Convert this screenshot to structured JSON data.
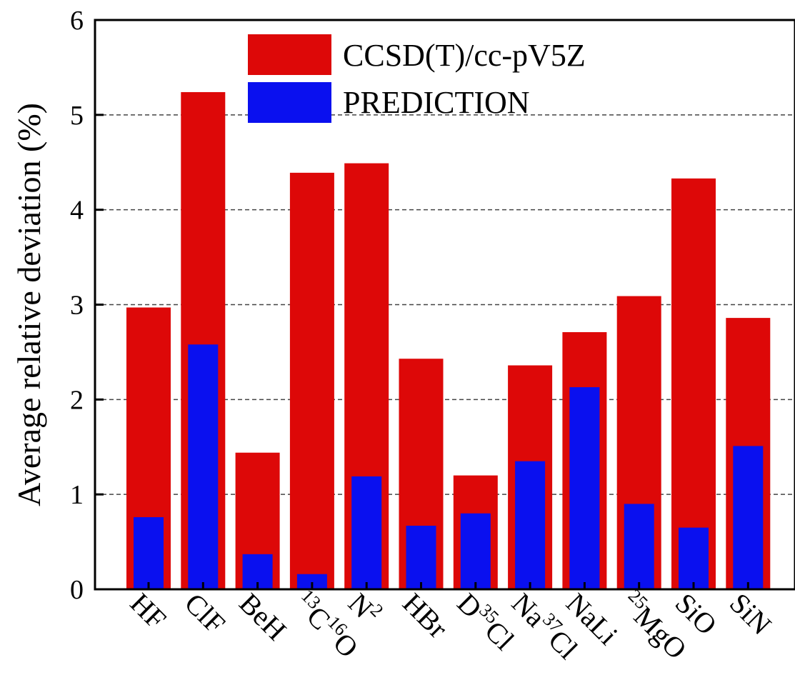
{
  "chart_data": {
    "type": "bar",
    "categories": [
      "HF",
      "ClF",
      "BeH",
      "13C16O",
      "N2",
      "HBr",
      "D35Cl",
      "Na37Cl",
      "NaLi",
      "25MgO",
      "SiO",
      "SiN"
    ],
    "category_labels": [
      [
        {
          "t": "HF",
          "s": "base"
        }
      ],
      [
        {
          "t": "ClF",
          "s": "base"
        }
      ],
      [
        {
          "t": "BeH",
          "s": "base"
        }
      ],
      [
        {
          "t": "13",
          "s": "sup"
        },
        {
          "t": "C",
          "s": "base"
        },
        {
          "t": "16",
          "s": "sup"
        },
        {
          "t": "O",
          "s": "base"
        }
      ],
      [
        {
          "t": "N",
          "s": "base"
        },
        {
          "t": "2",
          "s": "sup"
        }
      ],
      [
        {
          "t": "HBr",
          "s": "base"
        }
      ],
      [
        {
          "t": "D",
          "s": "base"
        },
        {
          "t": "35",
          "s": "sup"
        },
        {
          "t": "Cl",
          "s": "base"
        }
      ],
      [
        {
          "t": "Na",
          "s": "base"
        },
        {
          "t": "37",
          "s": "sup"
        },
        {
          "t": "Cl",
          "s": "base"
        }
      ],
      [
        {
          "t": "NaLi",
          "s": "base"
        }
      ],
      [
        {
          "t": "25",
          "s": "sup"
        },
        {
          "t": "MgO",
          "s": "base"
        }
      ],
      [
        {
          "t": "SiO",
          "s": "base"
        }
      ],
      [
        {
          "t": "SiN",
          "s": "base"
        }
      ]
    ],
    "series": [
      {
        "name": "CCSD(T)/cc-pV5Z",
        "color": "#dd0808",
        "values": [
          2.97,
          5.24,
          1.44,
          4.39,
          4.49,
          2.43,
          1.2,
          2.36,
          2.71,
          3.09,
          4.33,
          2.86
        ]
      },
      {
        "name": "PREDICTION",
        "color": "#0a10ef",
        "values": [
          0.76,
          2.58,
          0.37,
          0.16,
          1.19,
          0.67,
          0.8,
          1.35,
          2.13,
          0.9,
          0.65,
          1.51
        ]
      }
    ],
    "title": "",
    "xlabel": "",
    "ylabel": "Average relative deviation (%)",
    "ylim": [
      0,
      6
    ],
    "yticks": [
      "0",
      "1",
      "2",
      "3",
      "4",
      "5",
      "6"
    ],
    "grid": "horizontal-dashed",
    "legend": "top-center"
  }
}
